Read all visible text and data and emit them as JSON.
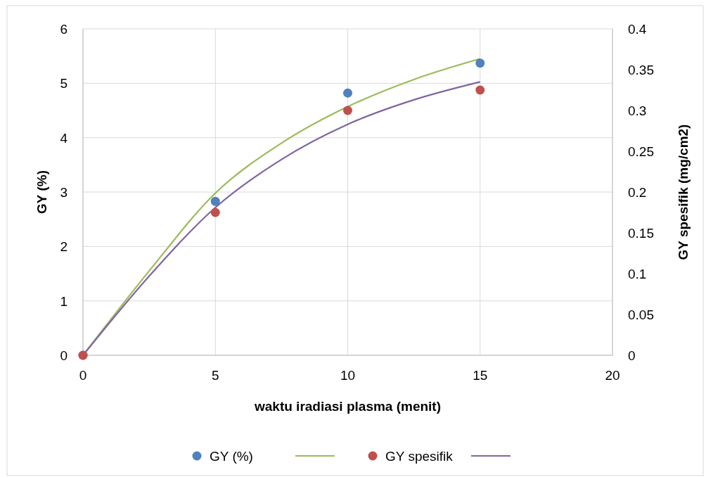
{
  "chart_data": {
    "type": "scatter",
    "xlabel": "waktu iradiasi plasma (menit)",
    "ylabel": "GY (%)",
    "y2label": "GY spesifik (mg/cm2)",
    "x": [
      0,
      5,
      10,
      15
    ],
    "series": [
      {
        "name": "GY (%)",
        "marker": "circle",
        "color": "#4f81bd",
        "values": [
          0,
          2.83,
          4.82,
          5.37
        ]
      },
      {
        "type": "line",
        "color": "#9bbb59",
        "x": [
          0,
          2.5,
          5,
          7.5,
          10,
          12.5,
          15
        ],
        "values": [
          0,
          1.55,
          2.98,
          3.9,
          4.57,
          5.07,
          5.45
        ]
      },
      {
        "name": "GY spesifik",
        "marker": "circle",
        "axis": "y2",
        "color": "#c0504d",
        "values": [
          0,
          0.175,
          0.3,
          0.325
        ]
      },
      {
        "type": "line",
        "axis": "y2",
        "color": "#8064a2",
        "x": [
          0,
          2.5,
          5,
          7.5,
          10,
          12.5,
          15
        ],
        "values": [
          0,
          0.097,
          0.181,
          0.24,
          0.283,
          0.313,
          0.335
        ]
      }
    ],
    "xlim": [
      0,
      20
    ],
    "xticks": [
      0,
      5,
      10,
      15,
      20
    ],
    "ylim": [
      0,
      6
    ],
    "yticks": [
      0,
      1,
      2,
      3,
      4,
      5,
      6
    ],
    "y2lim": [
      0,
      0.4
    ],
    "y2ticks": [
      0,
      0.05,
      0.1,
      0.15,
      0.2,
      0.25,
      0.3,
      0.35,
      0.4
    ],
    "grid": true,
    "legend": "bottom",
    "line_style": "solid"
  }
}
